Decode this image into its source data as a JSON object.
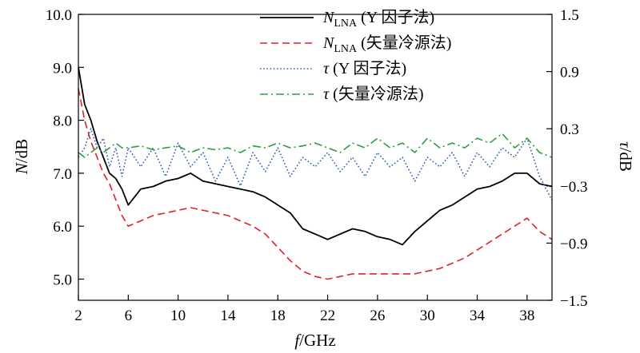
{
  "chart_data": {
    "type": "line",
    "title": "",
    "x_axis": {
      "label_var": "f",
      "label_unit": "/GHz",
      "range": [
        2,
        40
      ],
      "ticks": [
        2,
        6,
        10,
        14,
        18,
        22,
        26,
        30,
        34,
        38
      ],
      "tick_labels": [
        "2",
        "6",
        "10",
        "14",
        "18",
        "22",
        "26",
        "30",
        "34",
        "38"
      ]
    },
    "y_left": {
      "label_var": "N",
      "label_unit": "/dB",
      "range": [
        4.6,
        10.0
      ],
      "ticks": [
        5.0,
        6.0,
        7.0,
        8.0,
        9.0,
        10.0
      ],
      "tick_labels": [
        "5.0",
        "6.0",
        "7.0",
        "8.0",
        "9.0",
        "10.0"
      ]
    },
    "y_right": {
      "label_var": "τ",
      "label_unit": "/dB",
      "range": [
        -1.5,
        1.5
      ],
      "ticks": [
        -1.5,
        -0.9,
        -0.3,
        0.3,
        0.9,
        1.5
      ],
      "tick_labels": [
        "−1.5",
        "−0.9",
        "−0.3",
        "0.3",
        "0.9",
        "1.5"
      ]
    },
    "legend_position": "top-center",
    "series": [
      {
        "legend_var": "N",
        "legend_sub": "LNA",
        "legend_rest": " (Y 因子法)",
        "axis": "left",
        "color": "#000000",
        "dash": "solid",
        "x": [
          2,
          2.5,
          3,
          3.5,
          4,
          4.5,
          5,
          5.5,
          6,
          7,
          8,
          9,
          10,
          11,
          12,
          13,
          14,
          15,
          16,
          17,
          18,
          19,
          20,
          21,
          22,
          23,
          24,
          25,
          26,
          27,
          28,
          29,
          30,
          31,
          32,
          33,
          34,
          35,
          36,
          37,
          38,
          39,
          40
        ],
        "y": [
          9.0,
          8.3,
          8.0,
          7.6,
          7.3,
          7.0,
          6.9,
          6.7,
          6.4,
          6.7,
          6.75,
          6.85,
          6.9,
          7.0,
          6.85,
          6.8,
          6.75,
          6.7,
          6.65,
          6.55,
          6.4,
          6.25,
          5.95,
          5.85,
          5.75,
          5.85,
          5.95,
          5.9,
          5.8,
          5.75,
          5.65,
          5.9,
          6.1,
          6.3,
          6.4,
          6.55,
          6.7,
          6.75,
          6.85,
          7.0,
          7.0,
          6.8,
          6.75
        ]
      },
      {
        "legend_var": "N",
        "legend_sub": "LNA",
        "legend_rest": " (矢量冷源法)",
        "axis": "left",
        "color": "#e0202a",
        "dash": "dashed",
        "x": [
          2,
          2.5,
          3,
          3.5,
          4,
          4.5,
          5,
          5.5,
          6,
          7,
          8,
          9,
          10,
          11,
          12,
          13,
          14,
          15,
          16,
          17,
          18,
          19,
          20,
          21,
          22,
          23,
          24,
          25,
          26,
          27,
          28,
          29,
          30,
          31,
          32,
          33,
          34,
          35,
          36,
          37,
          38,
          39,
          40
        ],
        "y": [
          8.6,
          8.0,
          7.6,
          7.3,
          7.0,
          6.8,
          6.5,
          6.2,
          6.0,
          6.1,
          6.2,
          6.25,
          6.3,
          6.35,
          6.3,
          6.25,
          6.2,
          6.1,
          6.0,
          5.85,
          5.6,
          5.35,
          5.15,
          5.05,
          5.0,
          5.05,
          5.1,
          5.1,
          5.1,
          5.1,
          5.1,
          5.1,
          5.15,
          5.2,
          5.3,
          5.4,
          5.55,
          5.7,
          5.85,
          6.0,
          6.15,
          5.9,
          5.75
        ]
      },
      {
        "legend_var": "τ",
        "legend_sub": "",
        "legend_rest": " (Y 因子法)",
        "axis": "right",
        "color": "#2b62b6",
        "dash": "dotted",
        "x": [
          2,
          2.5,
          3,
          3.5,
          4,
          4.5,
          5,
          5.5,
          6,
          7,
          8,
          9,
          10,
          11,
          12,
          13,
          14,
          15,
          16,
          17,
          18,
          19,
          20,
          21,
          22,
          23,
          24,
          25,
          26,
          27,
          28,
          29,
          30,
          31,
          32,
          33,
          34,
          35,
          36,
          37,
          38,
          39,
          40
        ],
        "y": [
          0.0,
          0.1,
          0.3,
          0.1,
          0.2,
          -0.1,
          0.1,
          -0.2,
          0.1,
          -0.1,
          0.1,
          -0.2,
          0.15,
          -0.1,
          0.05,
          -0.25,
          0.0,
          -0.3,
          0.05,
          -0.15,
          0.1,
          -0.2,
          0.0,
          -0.1,
          0.05,
          -0.15,
          0.0,
          -0.2,
          0.05,
          -0.1,
          0.0,
          -0.25,
          0.0,
          -0.1,
          0.05,
          -0.2,
          0.05,
          -0.1,
          0.1,
          0.0,
          0.2,
          -0.2,
          -0.45
        ]
      },
      {
        "legend_var": "τ",
        "legend_sub": "",
        "legend_rest": " (矢量冷源法)",
        "axis": "right",
        "color": "#2e9e3e",
        "dash": "dashdot",
        "x": [
          2,
          2.5,
          3,
          3.5,
          4,
          4.5,
          5,
          5.5,
          6,
          7,
          8,
          9,
          10,
          11,
          12,
          13,
          14,
          15,
          16,
          17,
          18,
          19,
          20,
          21,
          22,
          23,
          24,
          25,
          26,
          27,
          28,
          29,
          30,
          31,
          32,
          33,
          34,
          35,
          36,
          37,
          38,
          39,
          40
        ],
        "y": [
          0.05,
          0.0,
          0.05,
          0.1,
          0.05,
          0.1,
          0.15,
          0.1,
          0.1,
          0.12,
          0.08,
          0.1,
          0.12,
          0.05,
          0.1,
          0.08,
          0.1,
          0.05,
          0.12,
          0.1,
          0.15,
          0.1,
          0.12,
          0.15,
          0.1,
          0.05,
          0.15,
          0.1,
          0.2,
          0.1,
          0.15,
          0.05,
          0.2,
          0.1,
          0.15,
          0.1,
          0.2,
          0.15,
          0.25,
          0.1,
          0.2,
          0.05,
          0.0
        ]
      }
    ]
  }
}
